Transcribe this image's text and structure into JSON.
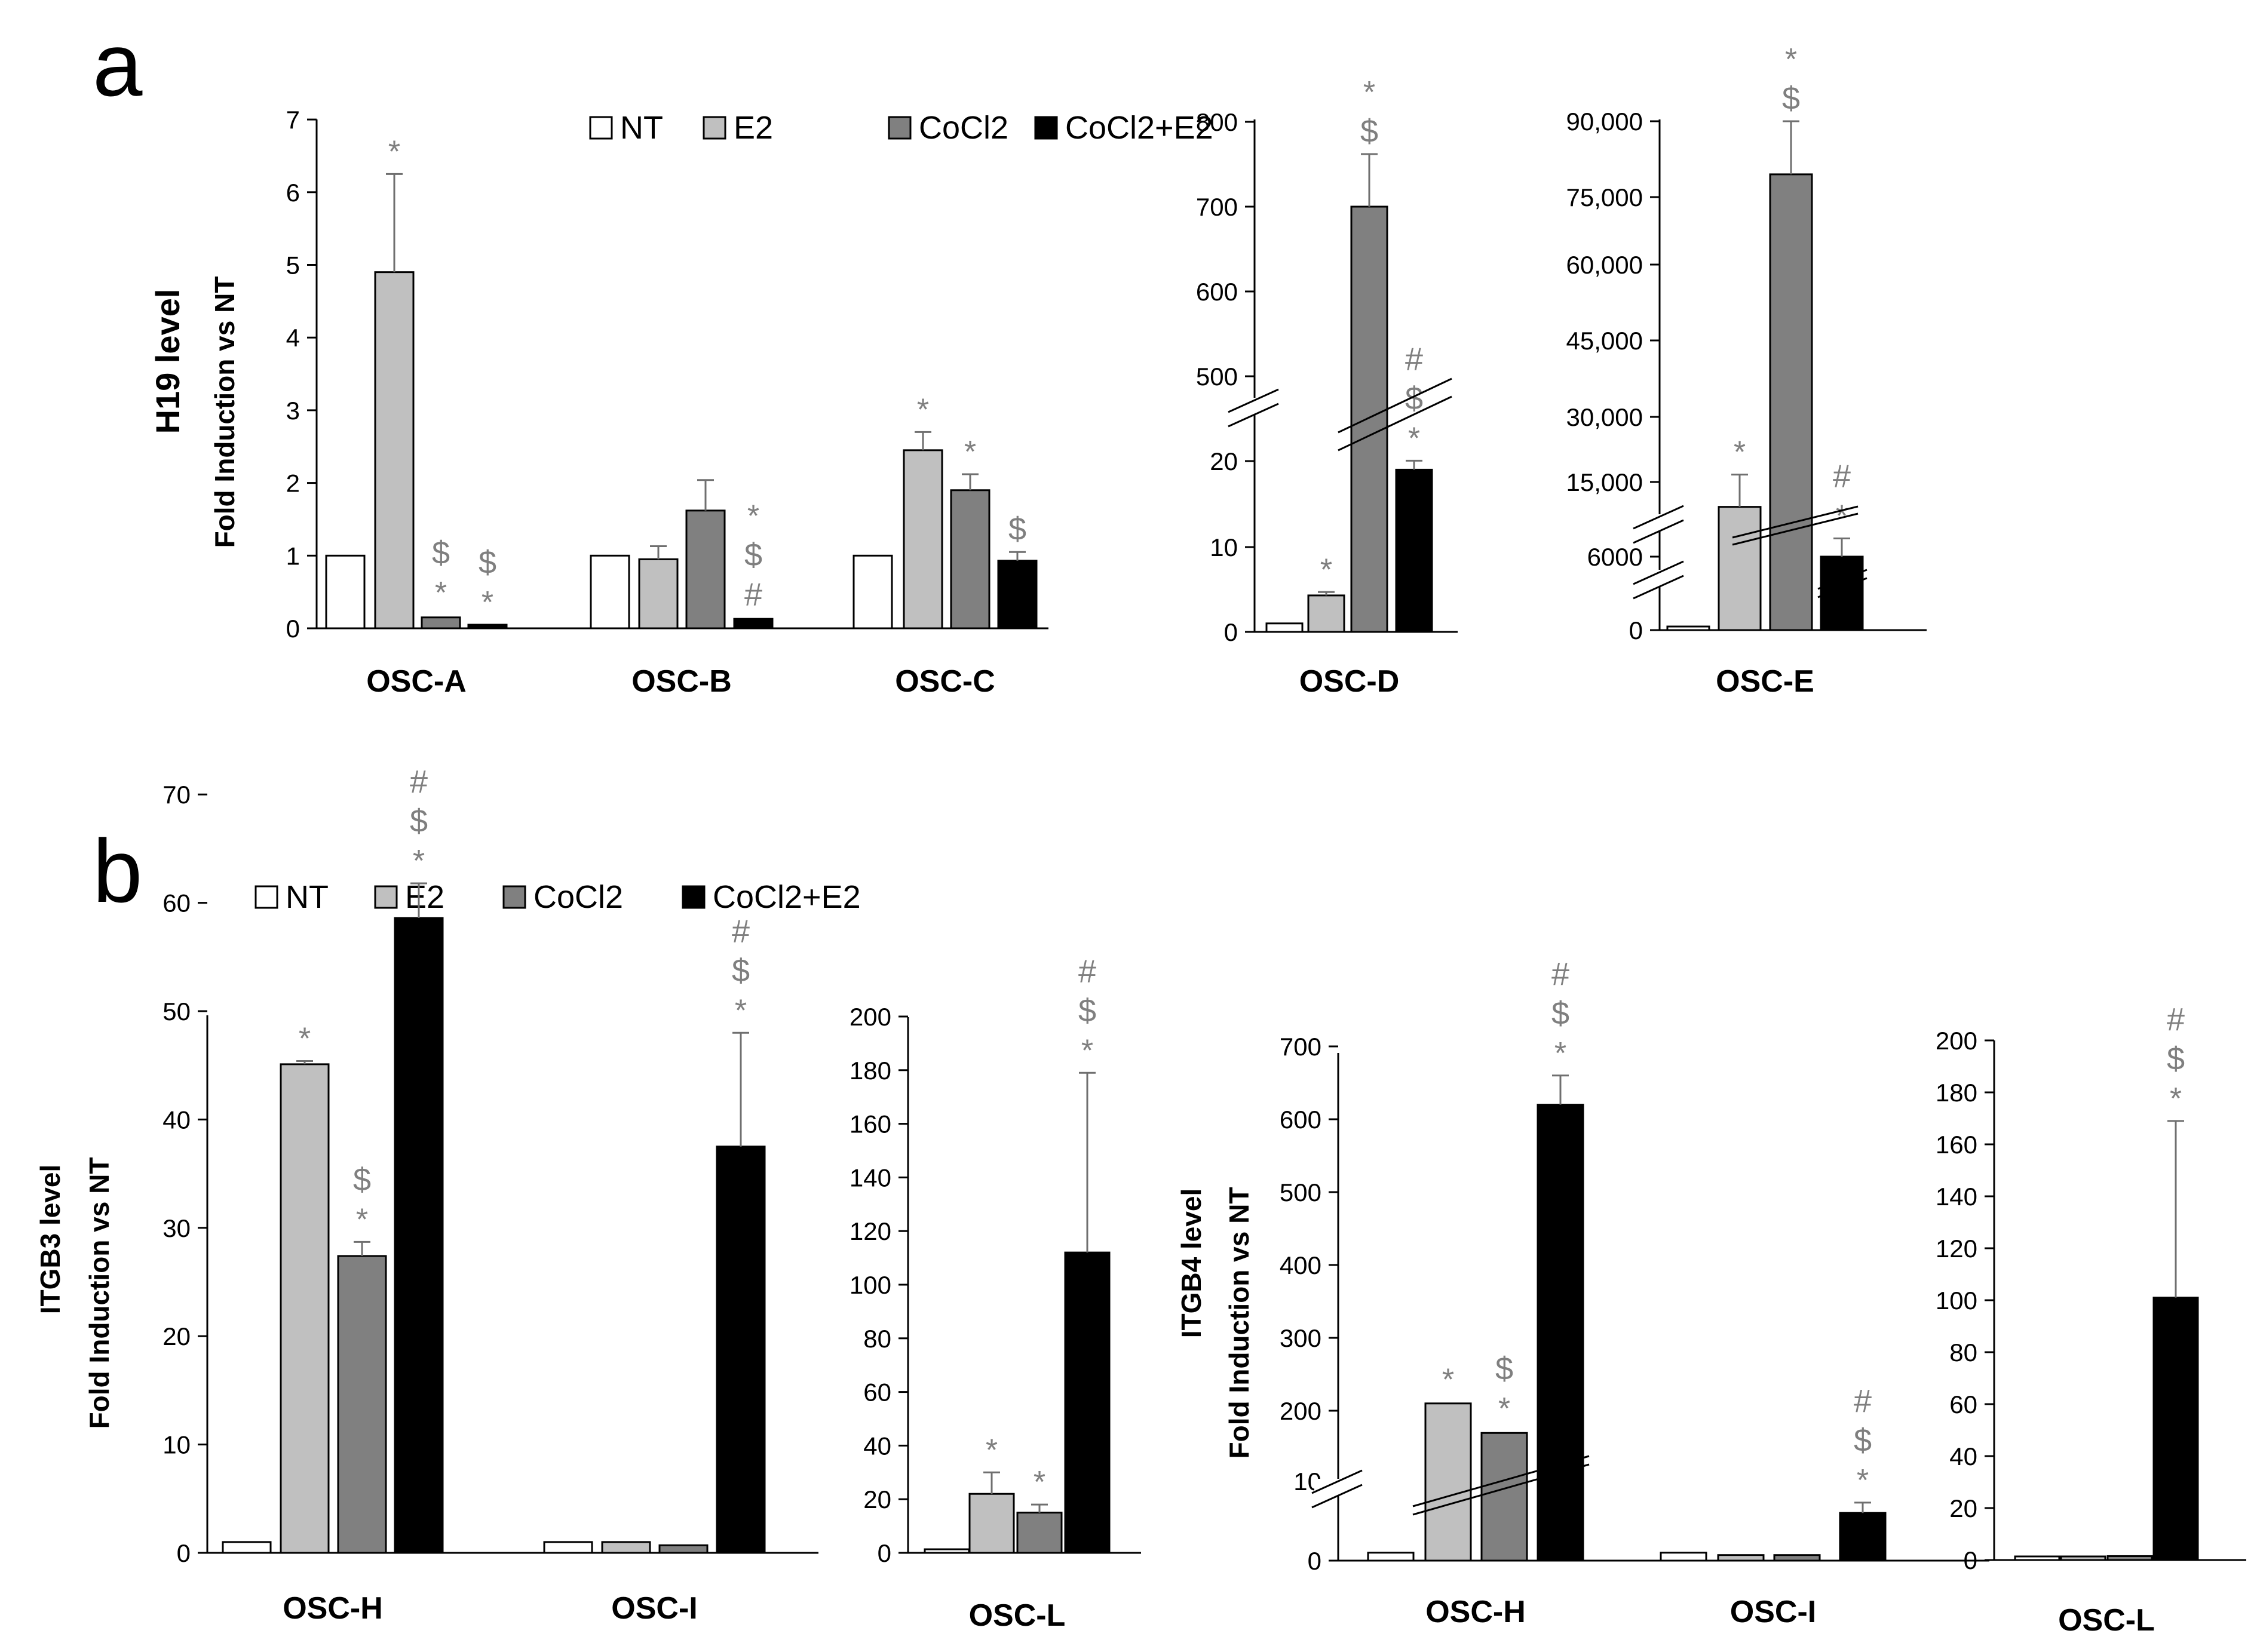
{
  "colors": {
    "NT": "#ffffff",
    "E2": "#c0c0c0",
    "CoCl2": "#808080",
    "CoCl2+E2": "#000000",
    "axis": "#000000",
    "marker": "#7f7f7f",
    "error": "#6f6f6f"
  },
  "legend": [
    {
      "key": "NT",
      "label": "NT"
    },
    {
      "key": "E2",
      "label": "E2"
    },
    {
      "key": "CoCl2",
      "label": "CoCl2"
    },
    {
      "key": "CoCl2+E2",
      "label": "CoCl2+E2"
    }
  ],
  "panels": [
    {
      "letter": "a",
      "title": "H19 level",
      "ylabel": "Fold Induction vs NT"
    },
    {
      "letter": "b",
      "title_itgb3": "ITGB3 level",
      "title_itgb4": "ITGB4 level",
      "ylabel": "Fold Induction vs NT"
    }
  ],
  "chart_data": [
    {
      "id": "a1",
      "type": "bar",
      "panel": "a",
      "ylabel": "Fold Induction vs NT",
      "ylim": [
        0,
        7
      ],
      "yticks": [
        "0",
        "1",
        "2",
        "3",
        "4",
        "5",
        "6",
        "7"
      ],
      "series": [
        "NT",
        "E2",
        "CoCl2",
        "CoCl2+E2"
      ],
      "groups": [
        {
          "name": "OSC-A",
          "values": [
            1,
            4.9,
            0.15,
            0.03
          ],
          "errors": [
            0.02,
            1.35,
            0.03,
            0.01
          ],
          "markers": [
            "",
            "*",
            "$\n*",
            "$\n*"
          ]
        },
        {
          "name": "OSC-B",
          "values": [
            1,
            0.95,
            1.62,
            0.13
          ],
          "errors": [
            0.02,
            0.18,
            0.42,
            0.02
          ],
          "markers": [
            "",
            "",
            "",
            "*\n$\n#"
          ]
        },
        {
          "name": "OSC-C",
          "values": [
            1,
            2.45,
            1.9,
            0.93
          ],
          "errors": [
            0.02,
            0.25,
            0.22,
            0.12
          ],
          "markers": [
            "",
            "*",
            "*",
            "$"
          ]
        }
      ]
    },
    {
      "id": "a2",
      "type": "bar",
      "panel": "a",
      "ylabel": "",
      "broken_axis": true,
      "yticks": [
        "0",
        "10",
        "20",
        "500",
        "600",
        "700",
        "800"
      ],
      "series": [
        "NT",
        "E2",
        "CoCl2",
        "CoCl2+E2"
      ],
      "groups": [
        {
          "name": "OSC-D",
          "values": [
            1,
            4.3,
            700,
            19
          ],
          "errors": [
            0.2,
            0.4,
            62,
            3
          ],
          "markers": [
            "",
            "*",
            "*\n$",
            "#\n$\n*"
          ]
        }
      ]
    },
    {
      "id": "a3",
      "type": "bar",
      "panel": "a",
      "ylabel": "",
      "broken_axis": true,
      "yticks": [
        "0",
        "6000",
        "15,000",
        "30,000",
        "45,000",
        "60,000",
        "75,000",
        "90,000"
      ],
      "series": [
        "NT",
        "E2",
        "CoCl2",
        "CoCl2+E2"
      ],
      "groups": [
        {
          "name": "OSC-E",
          "values": [
            1,
            12000,
            79500,
            6000
          ],
          "errors": [
            0.5,
            4700,
            10500,
            2200
          ],
          "markers": [
            "",
            "*",
            "*\n$",
            "#\n*"
          ]
        }
      ]
    },
    {
      "id": "b1",
      "type": "bar",
      "panel": "b",
      "ylabel": "Fold Induction vs NT",
      "title": "ITGB3 level",
      "ylim": [
        0,
        70
      ],
      "yticks": [
        "0",
        "10",
        "20",
        "30",
        "40",
        "50",
        "60",
        "70"
      ],
      "series": [
        "NT",
        "E2",
        "CoCl2",
        "CoCl2+E2"
      ],
      "groups": [
        {
          "name": "OSC-H",
          "values": [
            1,
            45.1,
            27.4,
            58.6
          ],
          "errors": [
            0.1,
            0.3,
            1.3,
            3.2
          ],
          "markers": [
            "",
            "*",
            "$\n*",
            "#\n$\n*"
          ]
        },
        {
          "name": "OSC-I",
          "values": [
            1,
            1,
            0.7,
            37.5
          ],
          "errors": [
            0.1,
            0.1,
            0.1,
            10.5
          ],
          "markers": [
            "",
            "",
            "",
            "#\n$\n*"
          ]
        }
      ]
    },
    {
      "id": "b2",
      "type": "bar",
      "panel": "b",
      "ylabel": "",
      "ylim": [
        0,
        200
      ],
      "yticks": [
        "0",
        "20",
        "40",
        "60",
        "80",
        "100",
        "120",
        "140",
        "160",
        "180",
        "200"
      ],
      "series": [
        "NT",
        "E2",
        "CoCl2",
        "CoCl2+E2"
      ],
      "groups": [
        {
          "name": "OSC-L",
          "values": [
            1,
            22,
            15,
            112
          ],
          "errors": [
            0.2,
            8,
            3,
            67
          ],
          "markers": [
            "",
            "*",
            "*",
            "#\n$\n*"
          ]
        }
      ]
    },
    {
      "id": "b3",
      "type": "bar",
      "panel": "b",
      "ylabel": "Fold Induction vs NT",
      "title": "ITGB4 level",
      "broken_axis": true,
      "yticks": [
        "0",
        "10",
        "200",
        "300",
        "400",
        "500",
        "600",
        "700"
      ],
      "series": [
        "NT",
        "E2",
        "CoCl2",
        "CoCl2+E2"
      ],
      "groups": [
        {
          "name": "OSC-H",
          "values": [
            1,
            210,
            140,
            620
          ],
          "errors": [
            0.2,
            2,
            5,
            40
          ],
          "markers": [
            "",
            "*",
            "$\n*",
            "#\n$\n*"
          ]
        },
        {
          "name": "OSC-I",
          "values": [
            1,
            0.7,
            0.7,
            6
          ],
          "errors": [
            0.1,
            0.1,
            0.1,
            1.3
          ],
          "markers": [
            "",
            "",
            "",
            "#\n$\n*"
          ]
        }
      ]
    },
    {
      "id": "b4",
      "type": "bar",
      "panel": "b",
      "ylabel": "",
      "ylim": [
        0,
        200
      ],
      "yticks": [
        "0",
        "20",
        "40",
        "60",
        "80",
        "100",
        "120",
        "140",
        "160",
        "180",
        "200"
      ],
      "series": [
        "NT",
        "E2",
        "CoCl2",
        "CoCl2+E2"
      ],
      "groups": [
        {
          "name": "OSC-L",
          "values": [
            1,
            1,
            1.5,
            101
          ],
          "errors": [
            0.1,
            0.1,
            0.2,
            68
          ],
          "markers": [
            "",
            "",
            "",
            "#\n$\n*"
          ]
        }
      ]
    }
  ]
}
